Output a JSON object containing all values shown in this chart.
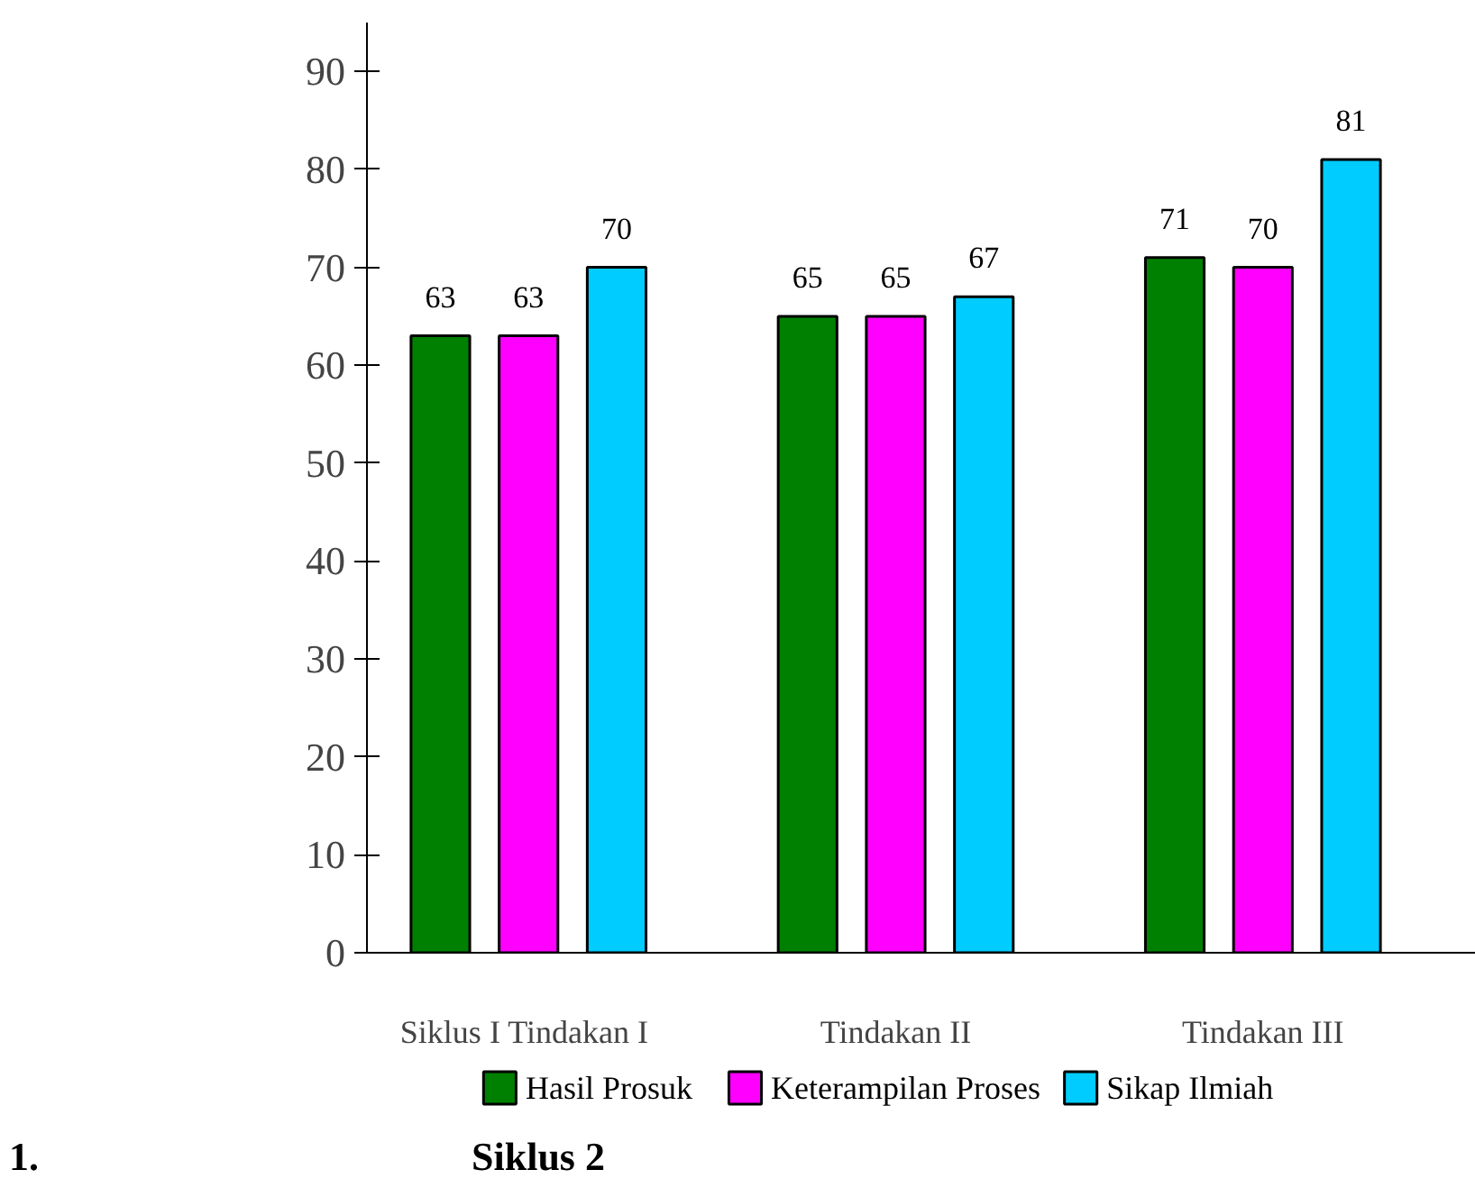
{
  "chart_data": {
    "type": "bar",
    "categories": [
      "Siklus I  Tindakan I",
      "Tindakan II",
      "Tindakan III"
    ],
    "series": [
      {
        "name": "Hasil Prosuk",
        "color": "#008000",
        "values": [
          63,
          65,
          71
        ]
      },
      {
        "name": "Keterampilan Proses",
        "color": "#ff00ff",
        "values": [
          63,
          65,
          70
        ]
      },
      {
        "name": "Sikap Ilmiah",
        "color": "#00ccff",
        "values": [
          70,
          67,
          81
        ]
      }
    ],
    "data_labels": true,
    "ylim": [
      0,
      95
    ],
    "yticks": [
      0,
      10,
      20,
      30,
      40,
      50,
      60,
      70,
      80,
      90
    ],
    "grid": false,
    "legend": "bottom",
    "annotations": [
      "1.",
      "Siklus 2"
    ]
  }
}
